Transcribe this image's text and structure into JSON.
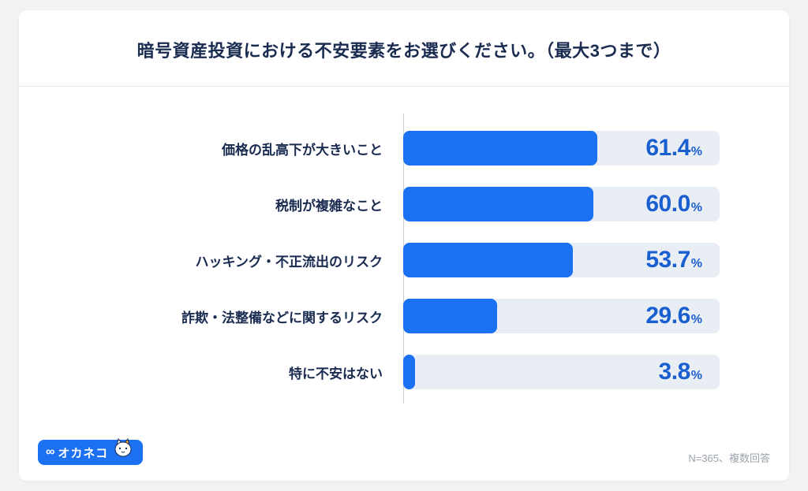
{
  "page": {
    "title": "暗号資産投資における不安要素をお選びください。（最大3つまで）",
    "footnote": "N=365、複数回答",
    "logo": {
      "icon": "∞",
      "text": "オカネコ"
    }
  },
  "colors": {
    "bar": "#1C70F2",
    "track": "#E9EEF5",
    "value_text": "#1A5FD0",
    "navy": "#1A2B50",
    "axis": "#C9CED6",
    "background": "#F1F2F4"
  },
  "chart_data": {
    "type": "bar",
    "orientation": "horizontal",
    "title": "暗号資産投資における不安要素をお選びください。（最大3つまで）",
    "categories": [
      "価格の乱高下が大きいこと",
      "税制が複雑なこと",
      "ハッキング・不正流出のリスク",
      "詐欺・法整備などに関するリスク",
      "特に不安はない"
    ],
    "values": [
      61.4,
      60.0,
      53.7,
      29.6,
      3.8
    ],
    "value_labels": [
      "61.4",
      "60.0",
      "53.7",
      "29.6",
      "3.8"
    ],
    "unit": "%",
    "xlim": [
      0,
      100
    ],
    "grid": false,
    "legend": "none",
    "note": "N=365、複数回答"
  }
}
